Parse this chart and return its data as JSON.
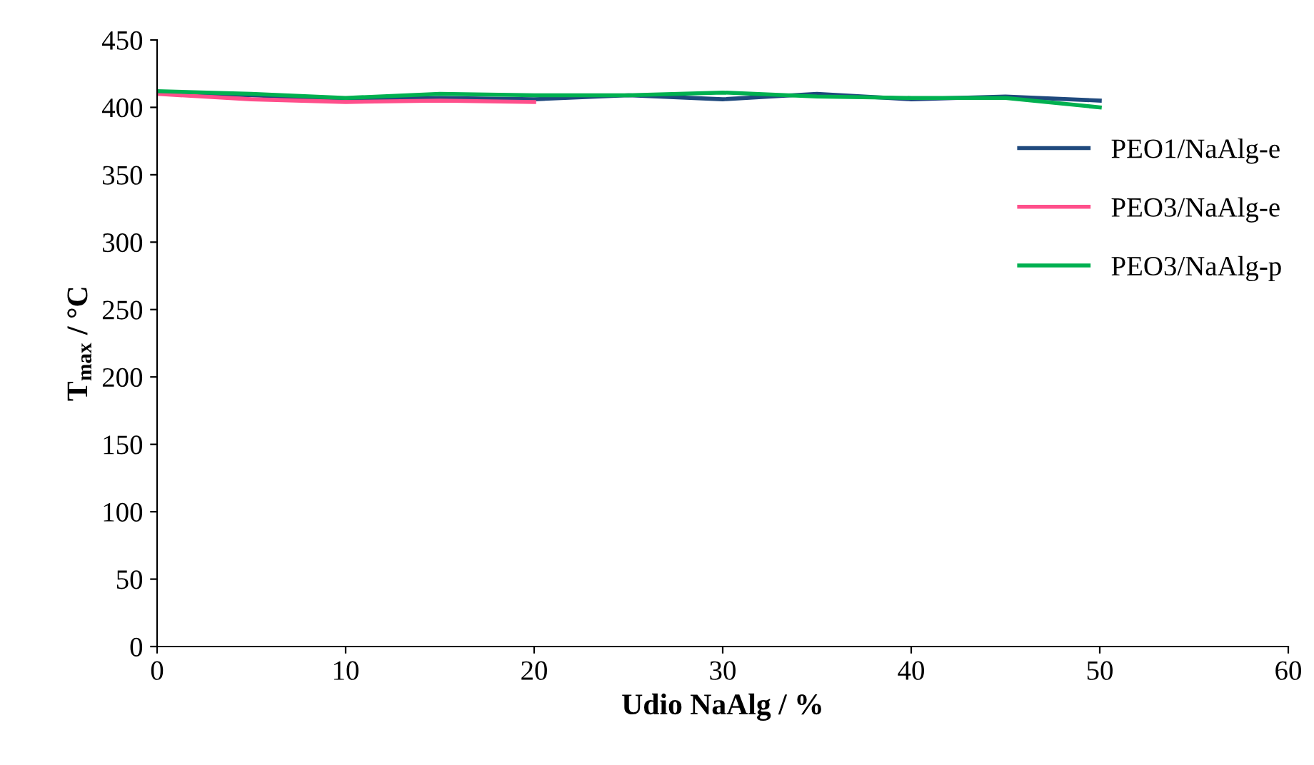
{
  "chart_data": {
    "type": "line",
    "xlabel": "Udio NaAlg / %",
    "ylabel": "T$_{max}$ / °C",
    "xlim": [
      0,
      60
    ],
    "xticks": [
      0,
      10,
      20,
      30,
      40,
      50,
      60
    ],
    "ylim": [
      0,
      450
    ],
    "yticks": [
      0,
      50,
      100,
      150,
      200,
      250,
      300,
      350,
      400,
      450
    ],
    "grid": false,
    "legend": "right",
    "marker": "none",
    "line_style": "solid",
    "series": [
      {
        "name": "PEO1/NaAlg-e",
        "color": "#1f497d",
        "x": [
          0,
          5,
          10,
          15,
          20,
          25,
          30,
          35,
          40,
          45,
          50
        ],
        "values": [
          411,
          409,
          406,
          407,
          406,
          409,
          406,
          410,
          406,
          408,
          405
        ]
      },
      {
        "name": "PEO3/NaAlg-e",
        "color": "#ff4f8b",
        "x": [
          0,
          5,
          10,
          15,
          20
        ],
        "values": [
          410,
          406,
          404,
          405,
          404
        ]
      },
      {
        "name": "PEO3/NaAlg-p",
        "color": "#00b050",
        "x": [
          0,
          5,
          10,
          15,
          20,
          25,
          30,
          35,
          40,
          45,
          50
        ],
        "values": [
          412,
          410,
          407,
          410,
          409,
          409,
          411,
          408,
          407,
          407,
          400
        ]
      }
    ]
  }
}
